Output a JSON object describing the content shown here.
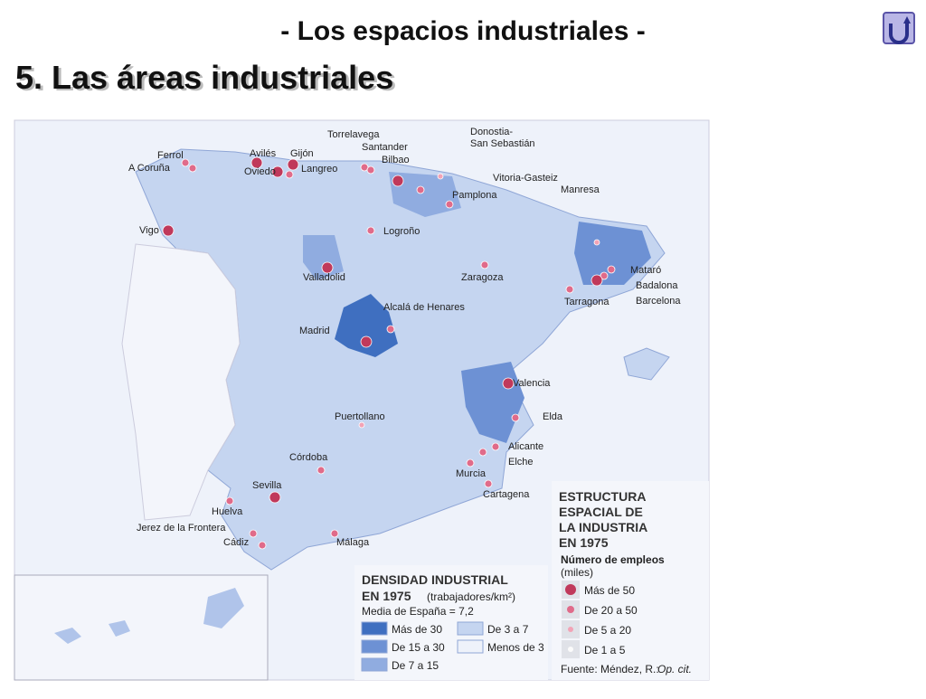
{
  "header": {
    "subtitle": "- Los espacios industriales -",
    "title": "5. Las áreas industriales"
  },
  "map": {
    "cities": [
      "Torrelavega",
      "Donostia-",
      "San Sebastián",
      "Santander",
      "Bilbao",
      "Ferrol",
      "A Coruña",
      "Avilés",
      "Gijón",
      "Oviedo",
      "Langreo",
      "Vitoria-Gasteiz",
      "Pamplona",
      "Manresa",
      "Vigo",
      "Logroño",
      "Valladolid",
      "Zaragoza",
      "Mataró",
      "Badalona",
      "Barcelona",
      "Tarragona",
      "Alcalá de Henares",
      "Madrid",
      "Valencia",
      "Puertollano",
      "Elda",
      "Alicante",
      "Elche",
      "Murcia",
      "Cartagena",
      "Córdoba",
      "Sevilla",
      "Huelva",
      "Jerez de la Frontera",
      "Cádiz",
      "Málaga"
    ],
    "density_legend": {
      "title_line1": "DENSIDAD INDUSTRIAL",
      "title_line2": "EN 1975",
      "unit": "(trabajadores/km²)",
      "mean": "Media de España = 7,2",
      "items": [
        "Más de 30",
        "De 15 a 30",
        "De 7 a 15",
        "De 3 a 7",
        "Menos de 3"
      ]
    },
    "employment_legend": {
      "title_lines": [
        "ESTRUCTURA",
        "ESPACIAL DE",
        "LA INDUSTRIA",
        "EN 1975"
      ],
      "subtitle": "Número de empleos",
      "unit": "(miles)",
      "items": [
        "Más de 50",
        "De 20 a 50",
        "De 5 a 20",
        "De 1 a 5"
      ],
      "source": "Fuente: Méndez, R.:",
      "source_ref": "Op. cit."
    }
  }
}
